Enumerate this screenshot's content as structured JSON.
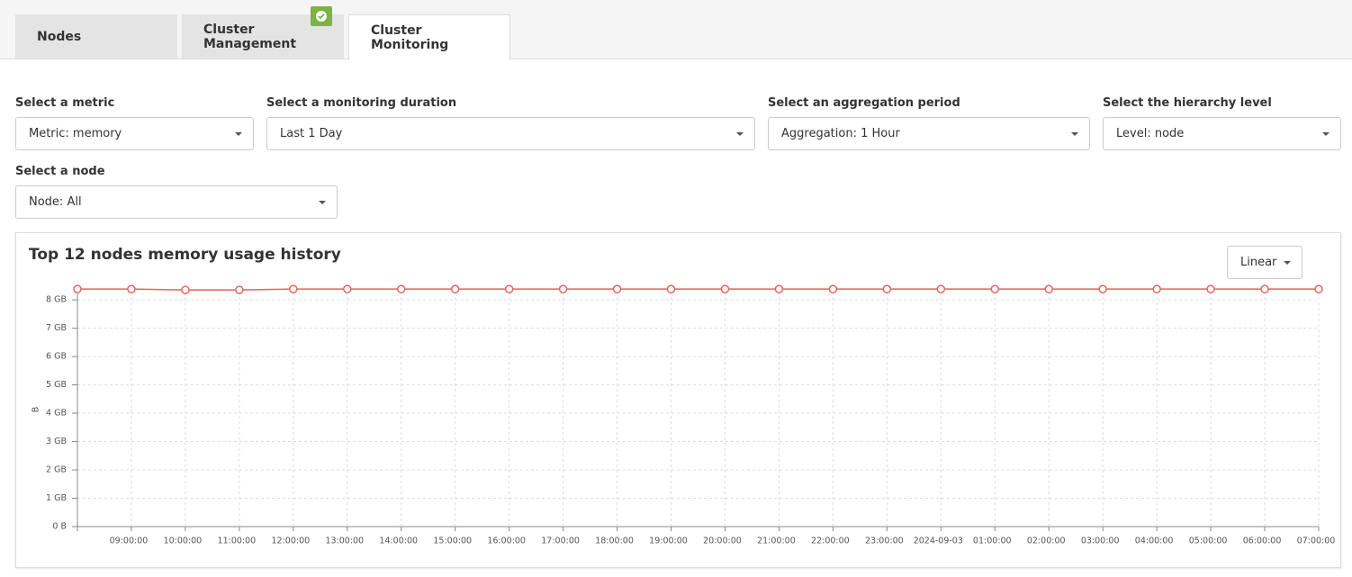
{
  "tabs": [
    "Nodes",
    "Cluster Management",
    "Cluster Monitoring"
  ],
  "filters": [
    {
      "label": "Select a metric",
      "value": "Metric: memory"
    },
    {
      "label": "Select a monitoring duration",
      "value": "Last 1 Day"
    },
    {
      "label": "Select an aggregation period",
      "value": "Aggregation: 1 Hour"
    },
    {
      "label": "Select the hierarchy level",
      "value": "Level: node"
    },
    {
      "label": "Select a node",
      "value": "Node: All"
    }
  ],
  "chart_data": {
    "type": "line",
    "title": "Top 12 nodes memory usage history",
    "scale_selector": "Linear",
    "ylabel": "B",
    "categories": [
      null,
      "09:00:00",
      "10:00:00",
      "11:00:00",
      "12:00:00",
      "13:00:00",
      "14:00:00",
      "15:00:00",
      "16:00:00",
      "17:00:00",
      "18:00:00",
      "19:00:00",
      "20:00:00",
      "21:00:00",
      "22:00:00",
      "23:00:00",
      "2024-09-03",
      "01:00:00",
      "02:00:00",
      "03:00:00",
      "04:00:00",
      "05:00:00",
      "06:00:00",
      "07:00:00"
    ],
    "values": [
      8.38,
      8.38,
      8.35,
      8.35,
      8.38,
      8.38,
      8.38,
      8.38,
      8.38,
      8.38,
      8.38,
      8.38,
      8.38,
      8.38,
      8.38,
      8.38,
      8.38,
      8.38,
      8.38,
      8.38,
      8.38,
      8.38,
      8.38,
      8.38
    ],
    "color": "#e4655d",
    "ylim": [
      0,
      8.48
    ],
    "yticks": [
      {
        "value": 0,
        "label": "0 B"
      },
      {
        "value": 1,
        "label": "1 GB"
      },
      {
        "value": 2,
        "label": "2 GB"
      },
      {
        "value": 3,
        "label": "3 GB"
      },
      {
        "value": 4,
        "label": "4 GB"
      },
      {
        "value": 5,
        "label": "5 GB"
      },
      {
        "value": 6,
        "label": "6 GB"
      },
      {
        "value": 7,
        "label": "7 GB"
      },
      {
        "value": 8,
        "label": "8 GB"
      }
    ],
    "grid": true
  }
}
